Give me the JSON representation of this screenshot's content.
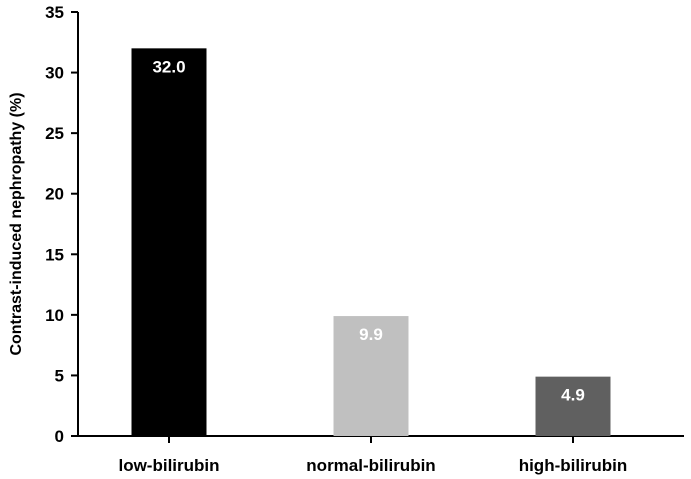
{
  "chart_data": {
    "type": "bar",
    "title": "",
    "xlabel": "",
    "ylabel": "Contrast-induced nephropathy (%)",
    "ylim": [
      0,
      35
    ],
    "yticks": [
      0,
      5,
      10,
      15,
      20,
      25,
      30,
      35
    ],
    "categories": [
      "low-bilirubin",
      "normal-bilirubin",
      "high-bilirubin"
    ],
    "values": [
      32.0,
      9.9,
      4.9
    ],
    "data_labels": [
      "32.0",
      "9.9",
      "4.9"
    ],
    "bar_colors": [
      "#000000",
      "#c0c0c0",
      "#606060"
    ],
    "data_label_color": "#ffffff",
    "grid": false,
    "legend": "none"
  }
}
